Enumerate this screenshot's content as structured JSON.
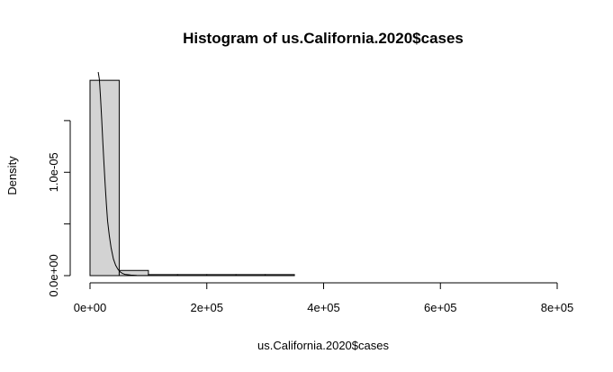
{
  "chart_data": {
    "type": "bar",
    "title": "Histogram of us.California.2020$cases",
    "xlabel": "us.California.2020$cases",
    "ylabel": "Density",
    "xlim": [
      0,
      800000
    ],
    "ylim": [
      0,
      1.9e-05
    ],
    "x_ticks": [
      0,
      200000,
      400000,
      600000,
      800000
    ],
    "x_tick_labels": [
      "0e+00",
      "2e+05",
      "4e+05",
      "6e+05",
      "8e+05"
    ],
    "y_ticks": [
      0,
      1e-05
    ],
    "y_tick_labels": [
      "0.0e+00",
      "1.0e-05"
    ],
    "y_minor_ticks": [
      5e-06,
      1.5e-05
    ],
    "bins": [
      {
        "from": 0,
        "to": 50000,
        "density": 1.89e-05
      },
      {
        "from": 50000,
        "to": 100000,
        "density": 5e-07
      },
      {
        "from": 100000,
        "to": 150000,
        "density": 1e-07
      },
      {
        "from": 150000,
        "to": 200000,
        "density": 1e-07
      },
      {
        "from": 200000,
        "to": 250000,
        "density": 1e-07
      },
      {
        "from": 250000,
        "to": 300000,
        "density": 1e-07
      },
      {
        "from": 300000,
        "to": 350000,
        "density": 1e-07
      },
      {
        "from": 350000,
        "to": 400000,
        "density": 0
      },
      {
        "from": 400000,
        "to": 450000,
        "density": 0
      },
      {
        "from": 450000,
        "to": 500000,
        "density": 0
      },
      {
        "from": 500000,
        "to": 550000,
        "density": 0
      },
      {
        "from": 550000,
        "to": 600000,
        "density": 0
      },
      {
        "from": 600000,
        "to": 650000,
        "density": 0
      },
      {
        "from": 650000,
        "to": 700000,
        "density": 0
      },
      {
        "from": 700000,
        "to": 750000,
        "density": 0
      },
      {
        "from": 750000,
        "to": 800000,
        "density": 0
      }
    ],
    "density_curve": {
      "x": [
        14000,
        16000,
        18000,
        20000,
        22000,
        24000,
        26000,
        28000,
        30000,
        33000,
        36000,
        40000,
        44000,
        48000,
        52000,
        56000,
        60000,
        70000,
        80000,
        100000,
        120000,
        150000,
        200000
      ],
      "y": [
        1.97e-05,
        1.9e-05,
        1.72e-05,
        1.51e-05,
        1.28e-05,
        1.07e-05,
        8.7e-06,
        6.9e-06,
        5.3e-06,
        3.9e-06,
        2.7e-06,
        1.6e-06,
        1e-06,
        6e-07,
        3.5e-07,
        2e-07,
        1.2e-07,
        5e-08,
        3e-08,
        1e-08,
        0,
        0,
        0
      ]
    },
    "grid": false,
    "bar_fill": "#d3d3d3",
    "bar_stroke": "#000000",
    "line_color": "#000000"
  }
}
